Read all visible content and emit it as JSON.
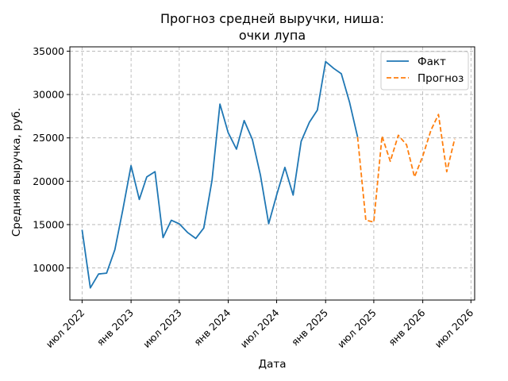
{
  "chart_data": {
    "type": "line",
    "title": [
      "Прогноз средней выручки, ниша:",
      "очки лупа"
    ],
    "xlabel": "Дата",
    "ylabel": "Средняя выручка, руб.",
    "xlim": [
      "2022-05-16",
      "2026-07-15"
    ],
    "ylim": [
      6300,
      35500
    ],
    "x_ticks": [
      {
        "date": "2022-07-01",
        "label": "июл 2022"
      },
      {
        "date": "2023-01-01",
        "label": "янв 2023"
      },
      {
        "date": "2023-07-01",
        "label": "июл 2023"
      },
      {
        "date": "2024-01-01",
        "label": "янв 2024"
      },
      {
        "date": "2024-07-01",
        "label": "июл 2024"
      },
      {
        "date": "2025-01-01",
        "label": "янв 2025"
      },
      {
        "date": "2025-07-01",
        "label": "июл 2025"
      },
      {
        "date": "2026-01-01",
        "label": "янв 2026"
      },
      {
        "date": "2026-07-01",
        "label": "июл 2026"
      }
    ],
    "y_ticks": [
      10000,
      15000,
      20000,
      25000,
      30000,
      35000
    ],
    "grid": true,
    "legend_position": "top-right",
    "series": [
      {
        "name": "Факт",
        "color": "#1f77b4",
        "style": "solid",
        "x": [
          "2022-07-01",
          "2022-08-01",
          "2022-09-01",
          "2022-10-01",
          "2022-11-01",
          "2022-12-01",
          "2023-01-01",
          "2023-02-01",
          "2023-03-01",
          "2023-04-01",
          "2023-05-01",
          "2023-06-01",
          "2023-07-01",
          "2023-08-01",
          "2023-09-01",
          "2023-10-01",
          "2023-11-01",
          "2023-12-01",
          "2024-01-01",
          "2024-02-01",
          "2024-03-01",
          "2024-04-01",
          "2024-05-01",
          "2024-06-01",
          "2024-07-01",
          "2024-08-01",
          "2024-09-01",
          "2024-10-01",
          "2024-11-01",
          "2024-12-01",
          "2025-01-01",
          "2025-02-01",
          "2025-03-01",
          "2025-04-01",
          "2025-05-01"
        ],
        "values": [
          14400,
          7700,
          9300,
          9400,
          12100,
          16700,
          21800,
          17900,
          20500,
          21100,
          13500,
          15500,
          15100,
          14100,
          13400,
          14600,
          20100,
          28900,
          25600,
          23700,
          27000,
          24800,
          20700,
          15100,
          18400,
          21600,
          18400,
          24600,
          26800,
          28200,
          33800,
          33000,
          32400,
          29100,
          25100
        ]
      },
      {
        "name": "Прогноз",
        "color": "#ff7f0e",
        "style": "dashed",
        "x": [
          "2025-05-01",
          "2025-06-01",
          "2025-07-01",
          "2025-08-01",
          "2025-09-01",
          "2025-10-01",
          "2025-11-01",
          "2025-12-01",
          "2026-01-01",
          "2026-02-01",
          "2026-03-01",
          "2026-04-01",
          "2026-05-01"
        ],
        "values": [
          25100,
          15500,
          15300,
          25200,
          22300,
          25300,
          24200,
          20500,
          22900,
          25900,
          27700,
          21100,
          24900
        ]
      }
    ]
  }
}
